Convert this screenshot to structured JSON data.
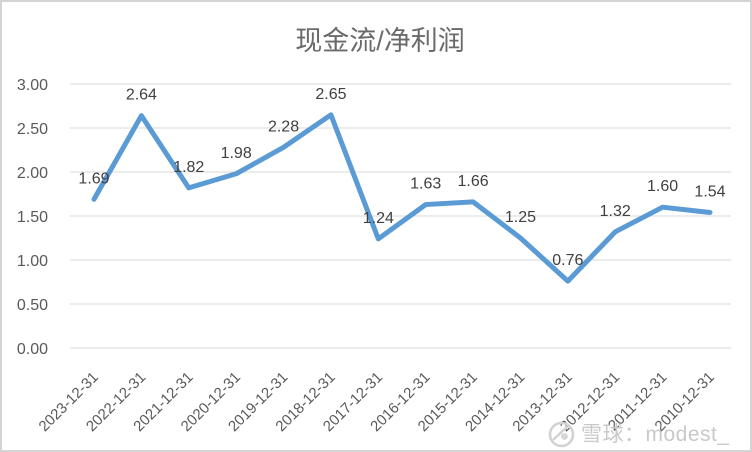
{
  "chart_data": {
    "type": "line",
    "title": "现金流/净利润",
    "categories": [
      "2023-12-31",
      "2022-12-31",
      "2021-12-31",
      "2020-12-31",
      "2019-12-31",
      "2018-12-31",
      "2017-12-31",
      "2016-12-31",
      "2015-12-31",
      "2014-12-31",
      "2013-12-31",
      "2012-12-31",
      "2011-12-31",
      "2010-12-31"
    ],
    "values": [
      1.69,
      2.64,
      1.82,
      1.98,
      2.28,
      2.65,
      1.24,
      1.63,
      1.66,
      1.25,
      0.76,
      1.32,
      1.6,
      1.54
    ],
    "data_labels": [
      "1.69",
      "2.64",
      "1.82",
      "1.98",
      "2.28",
      "2.65",
      "1.24",
      "1.63",
      "1.66",
      "1.25",
      "0.76",
      "1.32",
      "1.60",
      "1.54"
    ],
    "yticks": [
      "3.00",
      "2.50",
      "2.00",
      "1.50",
      "1.00",
      "0.50",
      "0.00"
    ],
    "ylim": [
      0,
      3
    ],
    "xlabel": "",
    "ylabel": "",
    "grid": true,
    "legend": "none",
    "line_color": "#5B9BD5",
    "grid_color": "#d9d9d9",
    "axis_text_color": "#595959",
    "data_label_color": "#404040",
    "title_color": "#6a6a6a"
  },
  "watermark": {
    "text": "雪球：modest_",
    "icon": "snowball-logo-icon",
    "color": "#c9c9c9"
  }
}
